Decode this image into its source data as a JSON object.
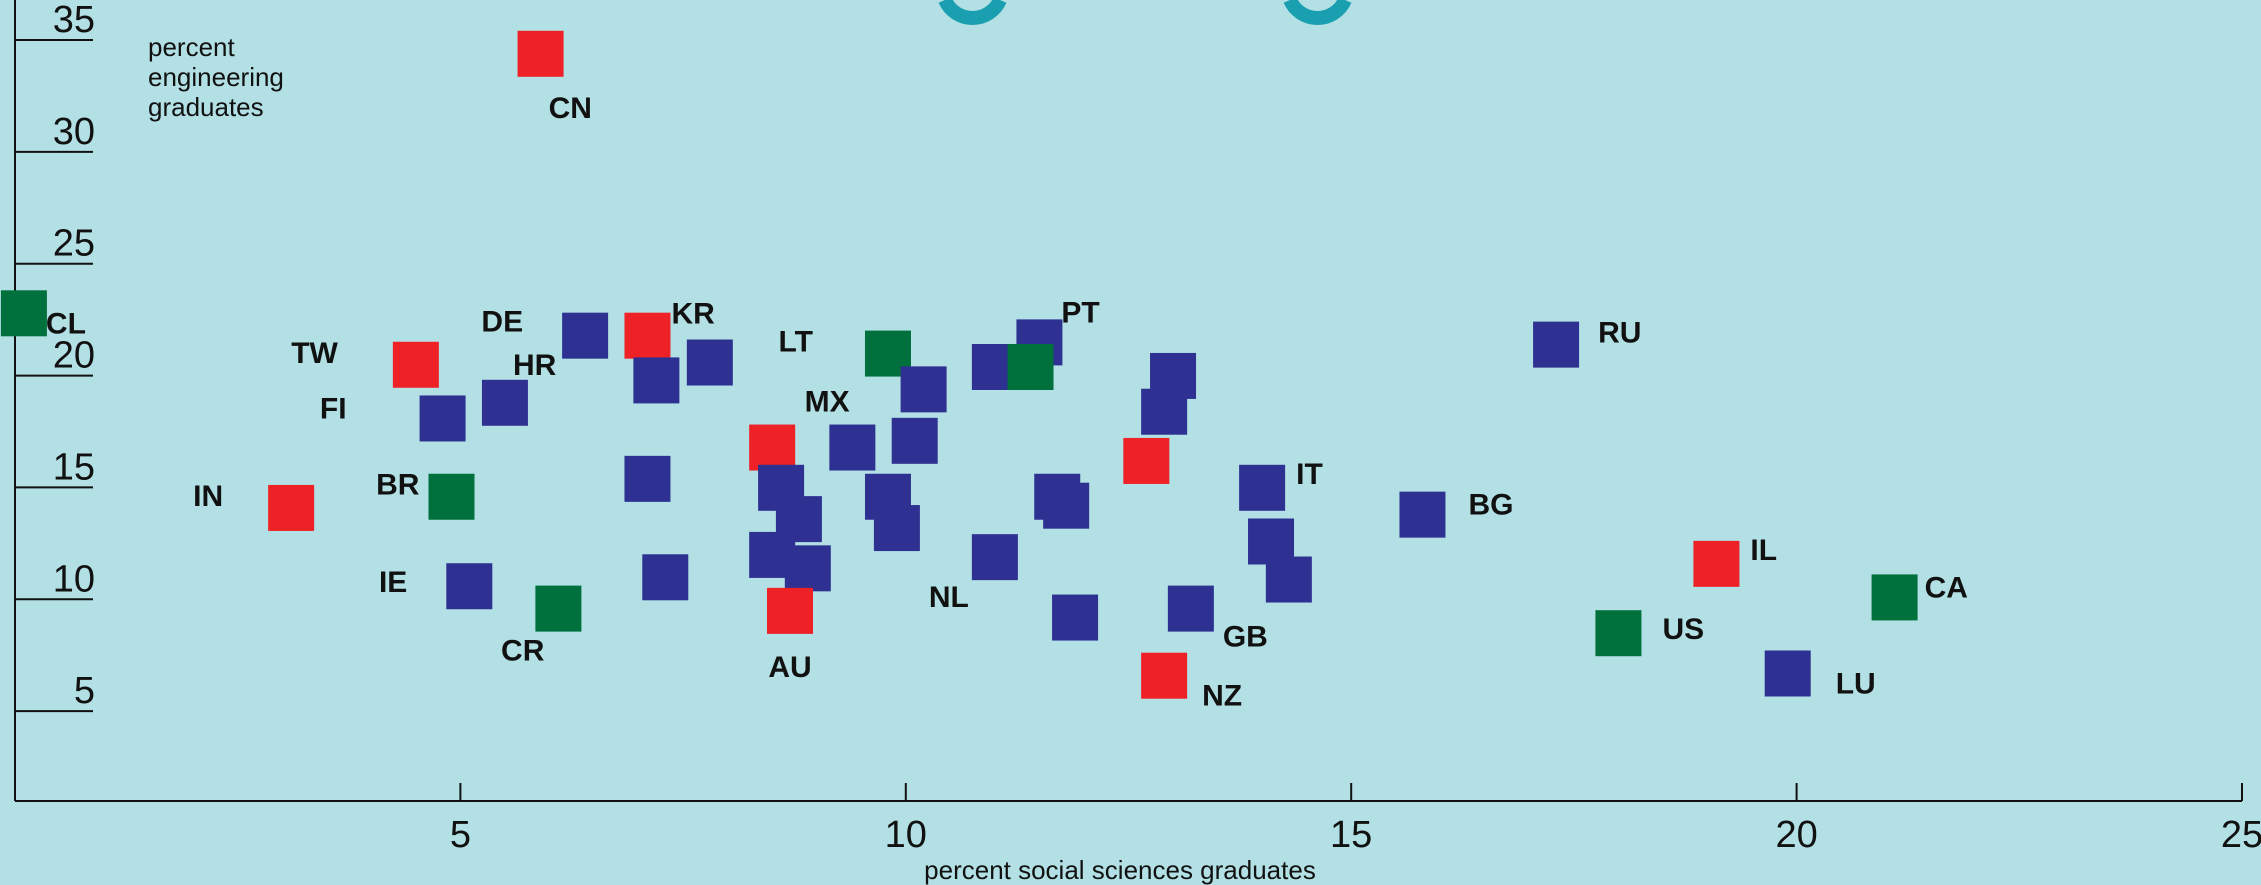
{
  "colors": {
    "background": "#b2e0e4",
    "red": "#ee2127",
    "blue": "#2e3192",
    "green": "#00703c",
    "title_fragment": "#1a9fb0"
  },
  "chart_data": {
    "type": "scatter",
    "title": "",
    "xlabel": "percent social sciences graduates",
    "ylabel": "percent engineering graduates",
    "xlim": [
      0,
      25
    ],
    "ylim": [
      0,
      35
    ],
    "x_ticks": [
      5,
      10,
      15,
      20,
      25
    ],
    "y_ticks": [
      5,
      10,
      15,
      20,
      25,
      30,
      35
    ],
    "grid": false,
    "points": [
      {
        "label": "CN",
        "x": 5.9,
        "y": 33.4,
        "group": "red"
      },
      {
        "label": "CL",
        "x": 0.1,
        "y": 21.8,
        "group": "green"
      },
      {
        "label": "TW",
        "x": 4.5,
        "y": 19.5,
        "group": "red"
      },
      {
        "label": "KR",
        "x": 7.1,
        "y": 20.8,
        "group": "red"
      },
      {
        "label": "DE",
        "x": 6.4,
        "y": 20.8,
        "group": "blue"
      },
      {
        "label": "HR",
        "x": 5.5,
        "y": 17.8,
        "group": "blue"
      },
      {
        "label": "FI",
        "x": 4.8,
        "y": 17.1,
        "group": "blue"
      },
      {
        "label": "",
        "x": 7.2,
        "y": 18.8,
        "group": "blue"
      },
      {
        "label": "",
        "x": 7.8,
        "y": 19.6,
        "group": "blue"
      },
      {
        "label": "IN",
        "x": 3.1,
        "y": 13.1,
        "group": "red"
      },
      {
        "label": "BR",
        "x": 4.9,
        "y": 13.6,
        "group": "green"
      },
      {
        "label": "IE",
        "x": 5.1,
        "y": 9.6,
        "group": "blue"
      },
      {
        "label": "CR",
        "x": 6.1,
        "y": 8.6,
        "group": "green"
      },
      {
        "label": "",
        "x": 7.1,
        "y": 14.4,
        "group": "blue"
      },
      {
        "label": "",
        "x": 7.3,
        "y": 10.0,
        "group": "blue"
      },
      {
        "label": "",
        "x": 8.5,
        "y": 15.8,
        "group": "red"
      },
      {
        "label": "",
        "x": 8.6,
        "y": 14.0,
        "group": "blue"
      },
      {
        "label": "",
        "x": 8.8,
        "y": 12.6,
        "group": "blue"
      },
      {
        "label": "",
        "x": 8.5,
        "y": 11.0,
        "group": "blue"
      },
      {
        "label": "",
        "x": 8.9,
        "y": 10.4,
        "group": "blue"
      },
      {
        "label": "AU",
        "x": 8.7,
        "y": 8.5,
        "group": "red"
      },
      {
        "label": "",
        "x": 9.4,
        "y": 15.8,
        "group": "blue"
      },
      {
        "label": "LT",
        "x": 9.8,
        "y": 20.0,
        "group": "green"
      },
      {
        "label": "MX",
        "x": 10.2,
        "y": 18.4,
        "group": "blue"
      },
      {
        "label": "",
        "x": 10.1,
        "y": 16.1,
        "group": "blue"
      },
      {
        "label": "",
        "x": 9.8,
        "y": 13.6,
        "group": "blue"
      },
      {
        "label": "",
        "x": 9.9,
        "y": 12.2,
        "group": "blue"
      },
      {
        "label": "",
        "x": 11.0,
        "y": 19.4,
        "group": "blue"
      },
      {
        "label": "PT",
        "x": 11.5,
        "y": 20.5,
        "group": "blue"
      },
      {
        "label": "",
        "x": 11.4,
        "y": 19.4,
        "group": "green"
      },
      {
        "label": "NL",
        "x": 11.0,
        "y": 10.9,
        "group": "blue"
      },
      {
        "label": "",
        "x": 11.7,
        "y": 13.6,
        "group": "blue"
      },
      {
        "label": "",
        "x": 11.8,
        "y": 13.2,
        "group": "blue"
      },
      {
        "label": "",
        "x": 11.9,
        "y": 8.2,
        "group": "blue"
      },
      {
        "label": "",
        "x": 13.0,
        "y": 19.0,
        "group": "blue"
      },
      {
        "label": "",
        "x": 12.9,
        "y": 17.4,
        "group": "blue"
      },
      {
        "label": "",
        "x": 12.7,
        "y": 15.2,
        "group": "red"
      },
      {
        "label": "GB",
        "x": 13.2,
        "y": 8.6,
        "group": "blue"
      },
      {
        "label": "NZ",
        "x": 12.9,
        "y": 5.6,
        "group": "red"
      },
      {
        "label": "IT",
        "x": 14.0,
        "y": 14.0,
        "group": "blue"
      },
      {
        "label": "",
        "x": 14.1,
        "y": 11.6,
        "group": "blue"
      },
      {
        "label": "",
        "x": 14.3,
        "y": 9.9,
        "group": "blue"
      },
      {
        "label": "BG",
        "x": 15.8,
        "y": 12.8,
        "group": "blue"
      },
      {
        "label": "RU",
        "x": 17.3,
        "y": 20.4,
        "group": "blue"
      },
      {
        "label": "US",
        "x": 18.0,
        "y": 7.5,
        "group": "green"
      },
      {
        "label": "IL",
        "x": 19.1,
        "y": 10.6,
        "group": "red"
      },
      {
        "label": "CA",
        "x": 21.1,
        "y": 9.1,
        "group": "green"
      },
      {
        "label": "LU",
        "x": 19.9,
        "y": 5.7,
        "group": "blue"
      }
    ]
  }
}
